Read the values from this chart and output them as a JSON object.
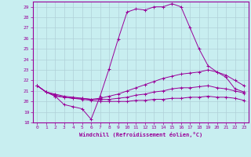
{
  "xlabel": "Windchill (Refroidissement éolien,°C)",
  "background_color": "#c8eef0",
  "grid_color": "#b0d0d8",
  "line_color": "#990099",
  "xlim": [
    -0.5,
    23.5
  ],
  "ylim": [
    18,
    29.5
  ],
  "yticks": [
    18,
    19,
    20,
    21,
    22,
    23,
    24,
    25,
    26,
    27,
    28,
    29
  ],
  "xticks": [
    0,
    1,
    2,
    3,
    4,
    5,
    6,
    7,
    8,
    9,
    10,
    11,
    12,
    13,
    14,
    15,
    16,
    17,
    18,
    19,
    20,
    21,
    22,
    23
  ],
  "series": [
    {
      "x": [
        0,
        1,
        2,
        3,
        4,
        5,
        6,
        7,
        8,
        9,
        10,
        11,
        12,
        13,
        14,
        15,
        16,
        17,
        18,
        19,
        20,
        21,
        22,
        23
      ],
      "y": [
        21.5,
        20.9,
        20.5,
        19.7,
        19.5,
        19.3,
        18.3,
        20.5,
        23.1,
        25.9,
        28.5,
        28.8,
        28.7,
        29.0,
        29.0,
        29.3,
        29.0,
        27.0,
        25.0,
        23.4,
        22.8,
        22.3,
        21.2,
        20.9
      ]
    },
    {
      "x": [
        0,
        1,
        2,
        3,
        4,
        5,
        6,
        7,
        8,
        9,
        10,
        11,
        12,
        13,
        14,
        15,
        16,
        17,
        18,
        19,
        20,
        21,
        22,
        23
      ],
      "y": [
        21.5,
        20.9,
        20.7,
        20.5,
        20.4,
        20.3,
        20.2,
        20.3,
        20.5,
        20.7,
        21.0,
        21.3,
        21.6,
        21.9,
        22.2,
        22.4,
        22.6,
        22.7,
        22.8,
        23.0,
        22.8,
        22.5,
        22.0,
        21.5
      ]
    },
    {
      "x": [
        0,
        1,
        2,
        3,
        4,
        5,
        6,
        7,
        8,
        9,
        10,
        11,
        12,
        13,
        14,
        15,
        16,
        17,
        18,
        19,
        20,
        21,
        22,
        23
      ],
      "y": [
        21.5,
        20.9,
        20.6,
        20.4,
        20.3,
        20.3,
        20.2,
        20.2,
        20.2,
        20.3,
        20.4,
        20.6,
        20.7,
        20.9,
        21.0,
        21.2,
        21.3,
        21.3,
        21.4,
        21.5,
        21.3,
        21.2,
        21.0,
        20.8
      ]
    },
    {
      "x": [
        0,
        1,
        2,
        3,
        4,
        5,
        6,
        7,
        8,
        9,
        10,
        11,
        12,
        13,
        14,
        15,
        16,
        17,
        18,
        19,
        20,
        21,
        22,
        23
      ],
      "y": [
        21.5,
        20.9,
        20.5,
        20.4,
        20.3,
        20.2,
        20.1,
        20.0,
        20.0,
        20.0,
        20.0,
        20.1,
        20.1,
        20.2,
        20.2,
        20.3,
        20.3,
        20.4,
        20.4,
        20.5,
        20.4,
        20.4,
        20.3,
        20.1
      ]
    }
  ]
}
